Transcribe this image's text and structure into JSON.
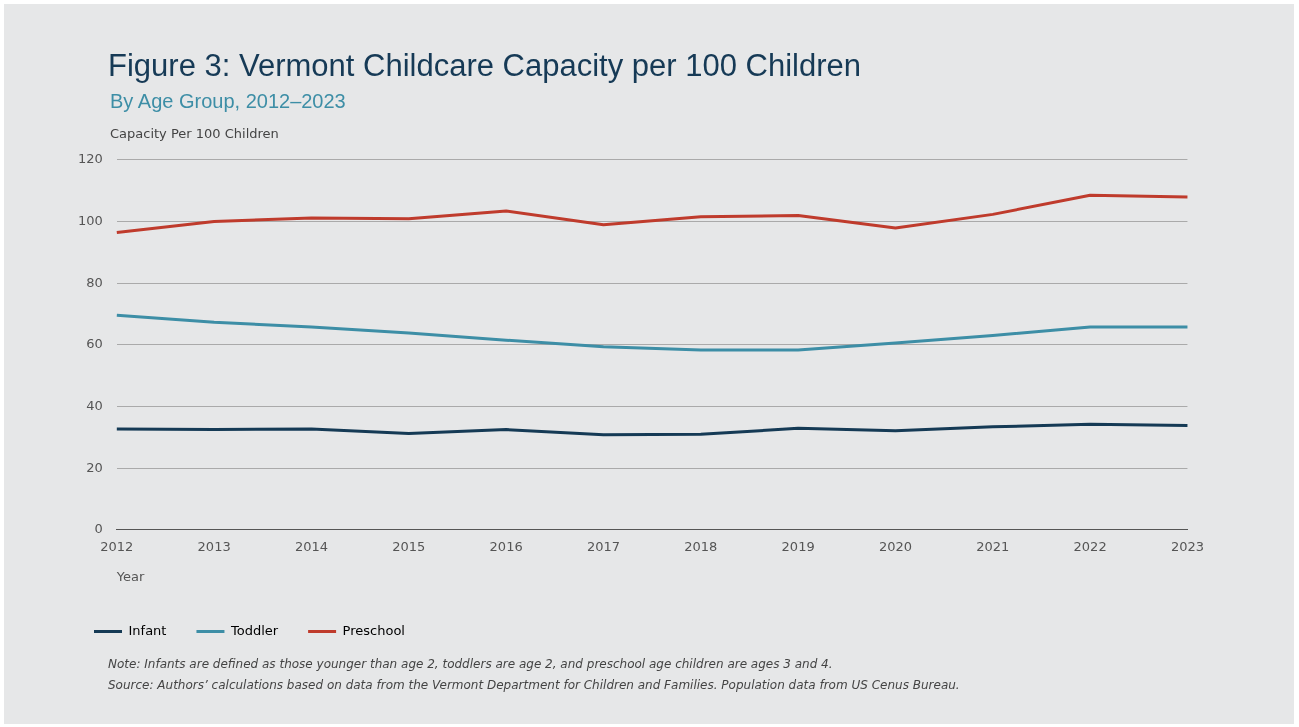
{
  "chart_data": {
    "type": "line",
    "title": "Figure 3: Vermont Childcare Capacity per 100 Children",
    "subtitle": "By Age Group, 2012–2023",
    "ylabel": "Capacity Per 100 Children",
    "xlabel": "Year",
    "categories": [
      "2012",
      "2013",
      "2014",
      "2015",
      "2016",
      "2017",
      "2018",
      "2019",
      "2020",
      "2021",
      "2022",
      "2023"
    ],
    "series": [
      {
        "name": "Infant",
        "color": "#153a55",
        "values": [
          32.7,
          32.5,
          32.7,
          31.2,
          32.5,
          30.8,
          31,
          32.9,
          32.1,
          33.4,
          34.2,
          33.8
        ]
      },
      {
        "name": "Toddler",
        "color": "#3d8ea6",
        "values": [
          69.6,
          67.3,
          65.8,
          63.8,
          61.5,
          59.4,
          58.3,
          58.3,
          60.6,
          63,
          65.8,
          65.8
        ]
      },
      {
        "name": "Preschool",
        "color": "#bf3b2c",
        "values": [
          96.4,
          100,
          101.1,
          100.9,
          103.4,
          98.9,
          101.5,
          101.9,
          97.9,
          102.3,
          108.5,
          107.9
        ]
      }
    ],
    "ylim": [
      0,
      120
    ],
    "yticks": [
      0,
      20,
      40,
      60,
      80,
      100,
      120
    ],
    "grid": "y",
    "legend": "bottom left",
    "marker": "none",
    "line_style": "solid",
    "annotations": [
      "Note: Infants are defined as those younger than age 2, toddlers are age 2, and preschool age children are ages 3 and 4.",
      "Source: Authors’ calculations based on data from the Vermont Department for Children and Families. Population data from US Cenus Bureau."
    ]
  }
}
